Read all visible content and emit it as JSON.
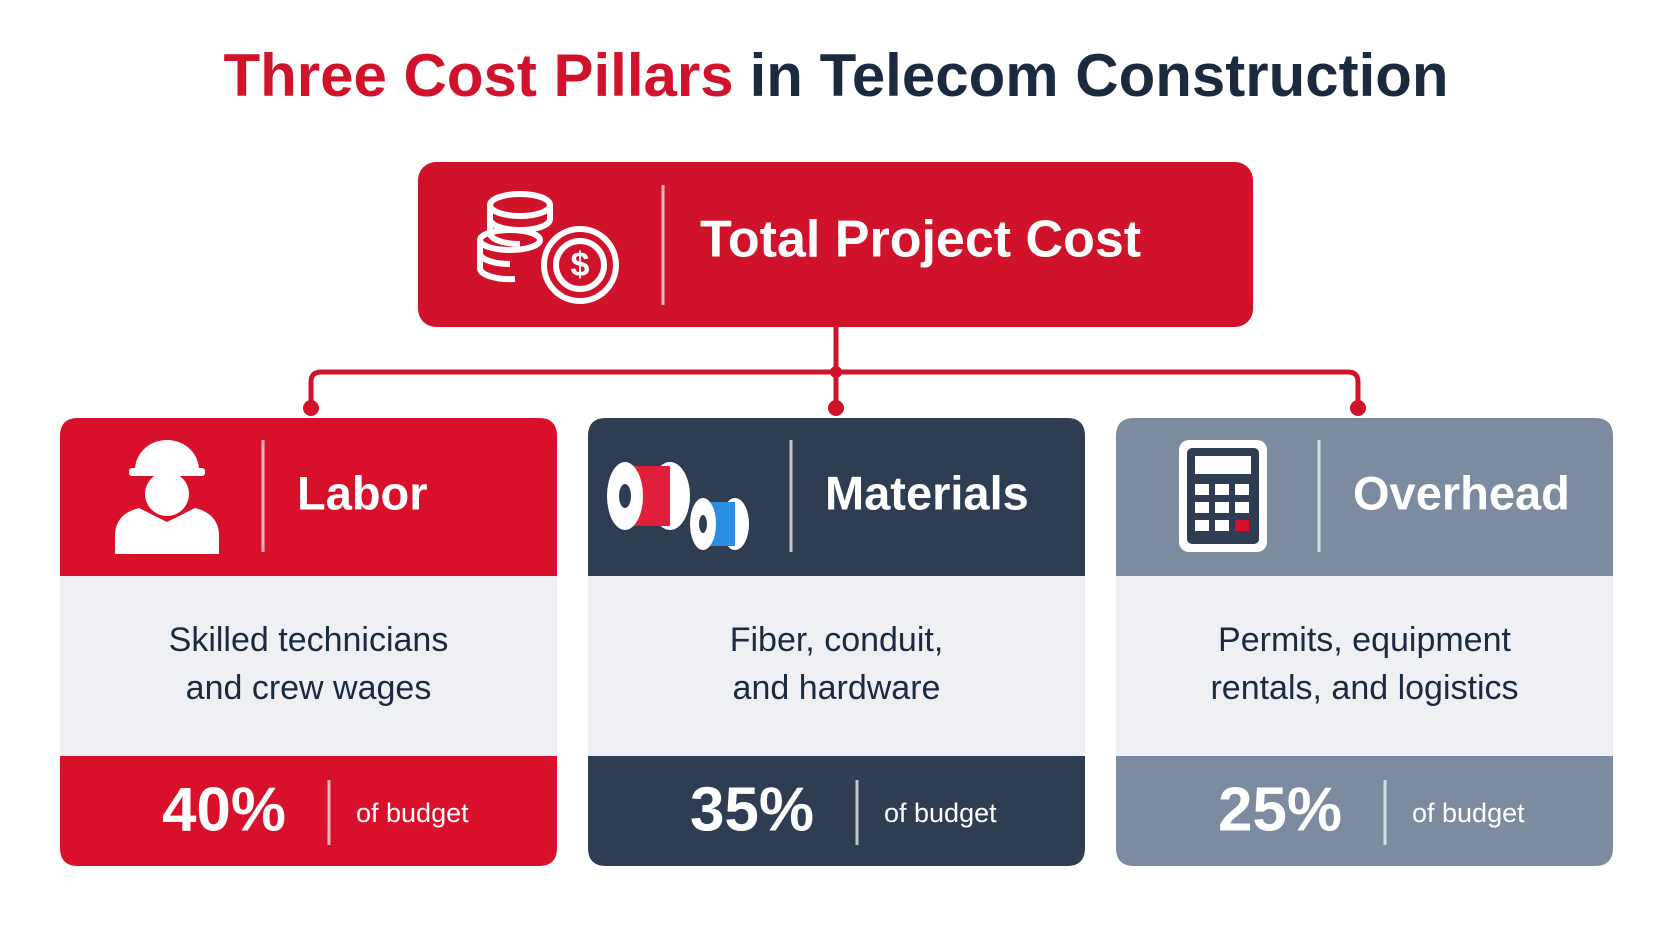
{
  "title": {
    "highlight": "Three Cost Pillars",
    "rest": "in Telecom Construction"
  },
  "root": {
    "label": "Total Project Cost"
  },
  "pillars": [
    {
      "name": "Labor",
      "description": [
        "Skilled technicians",
        "and crew wages"
      ],
      "share": "40%",
      "share_note": "of budget"
    },
    {
      "name": "Materials",
      "description": [
        "Fiber, conduit,",
        "and hardware"
      ],
      "share": "35%",
      "share_note": "of budget"
    },
    {
      "name": "Overhead",
      "description": [
        "Permits, equipment",
        "rentals, and logistics"
      ],
      "share": "25%",
      "share_note": "of budget"
    }
  ]
}
